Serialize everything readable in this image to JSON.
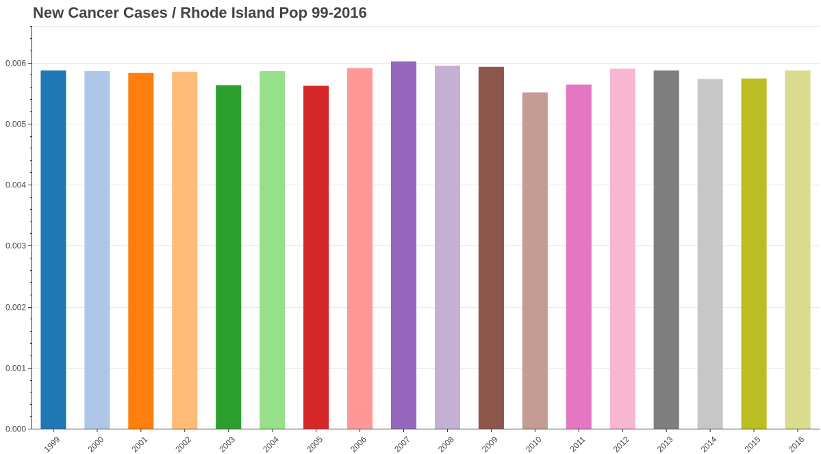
{
  "chart_data": {
    "type": "bar",
    "title": "New Cancer Cases / Rhode Island Pop 99-2016",
    "xlabel": "",
    "ylabel": "",
    "categories": [
      "1999",
      "2000",
      "2001",
      "2002",
      "2003",
      "2004",
      "2005",
      "2006",
      "2007",
      "2008",
      "2009",
      "2010",
      "2011",
      "2012",
      "2013",
      "2014",
      "2015",
      "2016"
    ],
    "values": [
      0.00587,
      0.00586,
      0.00583,
      0.00585,
      0.00563,
      0.00586,
      0.00562,
      0.00591,
      0.00602,
      0.00595,
      0.00593,
      0.00551,
      0.00564,
      0.0059,
      0.00587,
      0.00573,
      0.00574,
      0.00587
    ],
    "colors": [
      "#1f77b4",
      "#aec7e8",
      "#ff7f0e",
      "#ffbb78",
      "#2ca02c",
      "#98df8a",
      "#d62728",
      "#ff9896",
      "#9467bd",
      "#c5b0d5",
      "#8c564b",
      "#c49c94",
      "#e377c2",
      "#f7b6d2",
      "#7f7f7f",
      "#c7c7c7",
      "#bcbd22",
      "#dbdb8d"
    ],
    "ylim": [
      0,
      0.0066
    ],
    "yticks": [
      0,
      0.001,
      0.002,
      0.003,
      0.004,
      0.005,
      0.006
    ],
    "ytick_labels": [
      "0.000",
      "0.001",
      "0.002",
      "0.003",
      "0.004",
      "0.005",
      "0.006"
    ],
    "grid": true,
    "legend": "none"
  }
}
